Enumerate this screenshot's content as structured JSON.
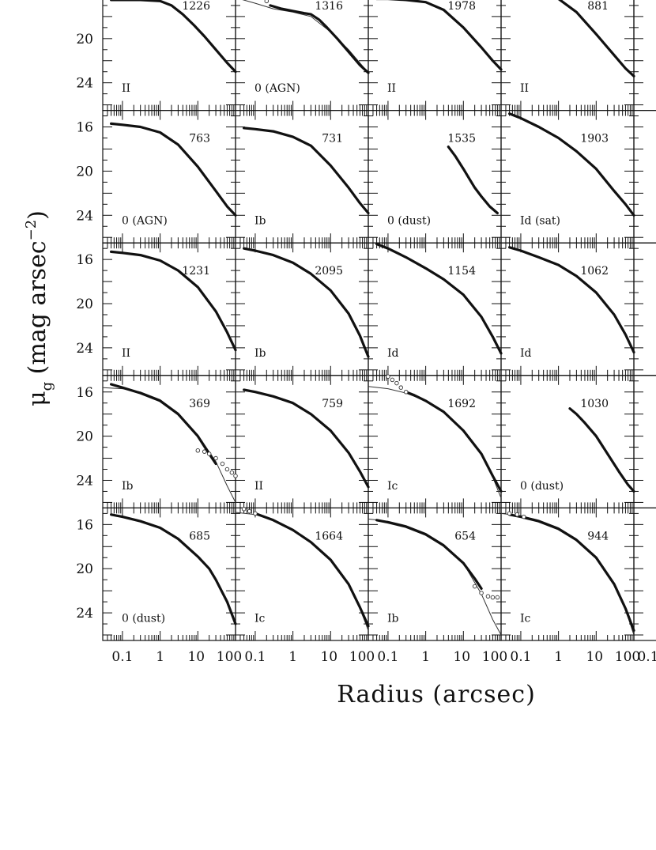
{
  "figure": {
    "ylabel_main": "μ",
    "ylabel_sub": "g",
    "ylabel_rest": " (mag arsec",
    "ylabel_exp": "−2",
    "ylabel_close": ")",
    "xlabel": "Radius (arcsec)"
  },
  "chart_data": {
    "type": "line",
    "layout": {
      "rows": 5,
      "cols": 4,
      "partial_fifth_column": true
    },
    "xscale": "log",
    "xlim": [
      0.03,
      100
    ],
    "ylim": [
      26.5,
      14.5
    ],
    "y_inverted": true,
    "xticks": [
      "0.1",
      "1",
      "10",
      "100"
    ],
    "yticks": [
      "16",
      "20",
      "24"
    ],
    "panels": [
      {
        "id": "1226",
        "type": "II",
        "series": [
          {
            "x": [
              0.05,
              0.1,
              0.3,
              1,
              2,
              4,
              8,
              15,
              30,
              60,
              100
            ],
            "y": [
              16.5,
              16.5,
              16.5,
              16.6,
              17.0,
              17.8,
              18.8,
              19.8,
              21.0,
              22.2,
              23.0
            ]
          }
        ]
      },
      {
        "id": "1316",
        "type": "0 (AGN)",
        "series": [
          {
            "x": [
              0.25,
              0.5,
              1,
              2,
              3,
              5,
              8,
              15,
              30,
              60,
              100
            ],
            "y": [
              17.0,
              17.3,
              17.5,
              17.7,
              17.8,
              18.3,
              19.0,
              20.0,
              21.2,
              22.4,
              23.1
            ]
          }
        ],
        "fit": {
          "x": [
            0.03,
            0.1,
            0.3,
            1,
            3,
            10,
            30,
            100
          ],
          "y": [
            16.3,
            16.8,
            17.3,
            17.6,
            18.0,
            19.4,
            21.0,
            23.1
          ]
        },
        "deviation": {
          "x": [
            0.08,
            0.1,
            0.13,
            0.16,
            0.2
          ],
          "y": [
            14.6,
            15.0,
            15.6,
            16.1,
            16.6
          ]
        }
      },
      {
        "id": "1978",
        "type": "II",
        "series": [
          {
            "x": [
              0.05,
              0.1,
              0.3,
              1,
              3,
              10,
              30,
              60,
              100
            ],
            "y": [
              16.4,
              16.4,
              16.5,
              16.7,
              17.4,
              19.0,
              20.8,
              22.0,
              22.8
            ]
          }
        ]
      },
      {
        "id": "881",
        "type": "II",
        "series": [
          {
            "x": [
              0.05,
              0.1,
              0.3,
              1,
              3,
              10,
              30,
              60,
              100
            ],
            "y": [
              16.2,
              16.2,
              16.2,
              16.4,
              17.6,
              19.6,
              21.5,
              22.7,
              23.4
            ]
          }
        ]
      },
      {
        "id": "763",
        "type": "0 (AGN)",
        "series": [
          {
            "x": [
              0.05,
              0.1,
              0.3,
              1,
              3,
              10,
              30,
              60,
              100
            ],
            "y": [
              15.7,
              15.8,
              16.0,
              16.5,
              17.6,
              19.6,
              21.8,
              23.2,
              24.0
            ]
          }
        ]
      },
      {
        "id": "731",
        "type": "Ib",
        "series": [
          {
            "x": [
              0.05,
              0.1,
              0.3,
              1,
              3,
              10,
              30,
              60,
              100
            ],
            "y": [
              16.1,
              16.2,
              16.4,
              16.9,
              17.7,
              19.5,
              21.5,
              22.9,
              23.8
            ]
          }
        ]
      },
      {
        "id": "1535",
        "type": "0 (dust)",
        "series": [
          {
            "x": [
              4,
              6,
              10,
              15,
              20,
              30,
              50,
              80
            ],
            "y": [
              17.8,
              18.6,
              19.8,
              20.8,
              21.5,
              22.3,
              23.2,
              23.8
            ]
          }
        ]
      },
      {
        "id": "1903",
        "type": "Id (sat)",
        "series": [
          {
            "x": [
              0.05,
              0.1,
              0.3,
              1,
              3,
              10,
              30,
              60,
              100
            ],
            "y": [
              14.8,
              15.2,
              16.0,
              17.0,
              18.2,
              19.8,
              21.8,
              23.0,
              24.0
            ]
          }
        ]
      },
      {
        "id": "1231",
        "type": "II",
        "series": [
          {
            "x": [
              0.05,
              0.1,
              0.3,
              1,
              3,
              10,
              30,
              60,
              100
            ],
            "y": [
              15.3,
              15.4,
              15.6,
              16.1,
              17.0,
              18.5,
              20.7,
              22.6,
              24.2
            ]
          }
        ]
      },
      {
        "id": "2095",
        "type": "Ib",
        "series": [
          {
            "x": [
              0.05,
              0.1,
              0.3,
              1,
              3,
              10,
              30,
              60,
              100
            ],
            "y": [
              15.0,
              15.2,
              15.6,
              16.3,
              17.3,
              18.8,
              20.9,
              22.9,
              24.8
            ]
          }
        ]
      },
      {
        "id": "1154",
        "type": "Id",
        "series": [
          {
            "x": [
              0.05,
              0.1,
              0.3,
              1,
              3,
              10,
              30,
              60,
              100
            ],
            "y": [
              14.6,
              15.0,
              15.8,
              16.8,
              17.8,
              19.2,
              21.2,
              23.0,
              24.5
            ]
          }
        ]
      },
      {
        "id": "1062",
        "type": "Id",
        "series": [
          {
            "x": [
              0.05,
              0.1,
              0.3,
              1,
              3,
              10,
              30,
              60,
              100
            ],
            "y": [
              14.9,
              15.2,
              15.8,
              16.5,
              17.5,
              19.0,
              21.0,
              22.8,
              24.4
            ]
          }
        ]
      },
      {
        "id": "369",
        "type": "Ib",
        "series": [
          {
            "x": [
              0.05,
              0.1,
              0.3,
              1,
              3,
              10,
              20,
              30
            ],
            "y": [
              15.3,
              15.6,
              16.1,
              16.8,
              18.0,
              20.0,
              21.6,
              22.5
            ]
          }
        ],
        "fit": {
          "x": [
            0.03,
            0.1,
            0.3,
            1,
            3,
            10,
            30,
            60,
            100
          ],
          "y": [
            15.6,
            15.7,
            16.0,
            16.7,
            17.9,
            19.9,
            22.3,
            24.5,
            26.0
          ]
        },
        "deviation": {
          "x": [
            10,
            15,
            20,
            30,
            45,
            60,
            80,
            100
          ],
          "y": [
            21.3,
            21.4,
            21.6,
            22.0,
            22.5,
            23.0,
            23.3,
            23.6
          ]
        }
      },
      {
        "id": "759",
        "type": "II",
        "series": [
          {
            "x": [
              0.05,
              0.1,
              0.3,
              1,
              3,
              10,
              30,
              60,
              100
            ],
            "y": [
              15.8,
              16.0,
              16.4,
              17.0,
              18.0,
              19.5,
              21.5,
              23.2,
              24.6
            ]
          }
        ]
      },
      {
        "id": "1692",
        "type": "Ic",
        "series": [
          {
            "x": [
              0.3,
              0.5,
              1,
              3,
              10,
              30,
              60,
              100
            ],
            "y": [
              16.0,
              16.3,
              16.8,
              17.8,
              19.5,
              21.6,
              23.6,
              25.0
            ]
          }
        ],
        "fit": {
          "x": [
            0.03,
            0.1,
            0.3,
            1,
            3,
            10,
            30,
            60,
            100
          ],
          "y": [
            15.5,
            15.7,
            16.1,
            16.8,
            17.8,
            19.5,
            21.7,
            23.7,
            25.6
          ]
        },
        "deviation": {
          "x": [
            0.1,
            0.13,
            0.17,
            0.22,
            0.3
          ],
          "y": [
            14.6,
            14.9,
            15.2,
            15.6,
            16.0
          ]
        }
      },
      {
        "id": "1030",
        "type": "0 (dust)",
        "series": [
          {
            "x": [
              2,
              3,
              5,
              10,
              20,
              40,
              70,
              100
            ],
            "y": [
              17.5,
              18.0,
              18.8,
              20.0,
              21.6,
              23.2,
              24.4,
              25.0
            ]
          }
        ]
      },
      {
        "id": "685",
        "type": "0 (dust)",
        "series": [
          {
            "x": [
              0.05,
              0.1,
              0.3,
              1,
              3,
              10,
              20,
              30,
              60,
              100
            ],
            "y": [
              15.1,
              15.3,
              15.7,
              16.3,
              17.3,
              18.9,
              20.0,
              21.0,
              23.0,
              25.0
            ]
          }
        ]
      },
      {
        "id": "1664",
        "type": "Ic",
        "series": [
          {
            "x": [
              0.1,
              0.3,
              1,
              3,
              10,
              30,
              60,
              100
            ],
            "y": [
              15.0,
              15.6,
              16.5,
              17.6,
              19.2,
              21.4,
              23.5,
              25.2
            ]
          }
        ],
        "fit": {
          "x": [
            0.03,
            0.1,
            0.3,
            1,
            3,
            10,
            30,
            60,
            100
          ],
          "y": [
            14.9,
            15.1,
            15.6,
            16.5,
            17.6,
            19.2,
            21.4,
            23.6,
            25.6
          ]
        },
        "deviation": {
          "x": [
            0.05,
            0.07,
            0.1
          ],
          "y": [
            14.6,
            14.8,
            15.0
          ]
        }
      },
      {
        "id": "654",
        "type": "Ib",
        "series": [
          {
            "x": [
              0.05,
              0.1,
              0.3,
              1,
              3,
              10,
              20,
              30
            ],
            "y": [
              15.6,
              15.8,
              16.2,
              16.9,
              17.9,
              19.5,
              20.9,
              21.8
            ]
          }
        ],
        "fit": {
          "x": [
            0.03,
            0.1,
            0.3,
            1,
            3,
            10,
            30,
            60,
            100
          ],
          "y": [
            15.5,
            15.7,
            16.1,
            16.8,
            17.8,
            19.5,
            22.3,
            24.6,
            26.0
          ]
        },
        "deviation": {
          "x": [
            20,
            30,
            45,
            60,
            80
          ],
          "y": [
            21.6,
            22.2,
            22.5,
            22.6,
            22.6
          ]
        }
      },
      {
        "id": "944",
        "type": "Ic",
        "series": [
          {
            "x": [
              0.05,
              0.1,
              0.3,
              1,
              3,
              10,
              30,
              60,
              100
            ],
            "y": [
              15.1,
              15.3,
              15.7,
              16.4,
              17.4,
              19.0,
              21.4,
              23.6,
              25.6
            ]
          }
        ],
        "fit": {
          "x": [
            0.03,
            0.1,
            0.3,
            1,
            3,
            10,
            30,
            60,
            100
          ],
          "y": [
            15.0,
            15.2,
            15.6,
            16.3,
            17.3,
            18.9,
            21.3,
            23.7,
            26.0
          ]
        },
        "deviation": {
          "x": [
            0.05,
            0.08,
            0.12
          ],
          "y": [
            15.0,
            15.1,
            15.3
          ]
        }
      }
    ]
  }
}
